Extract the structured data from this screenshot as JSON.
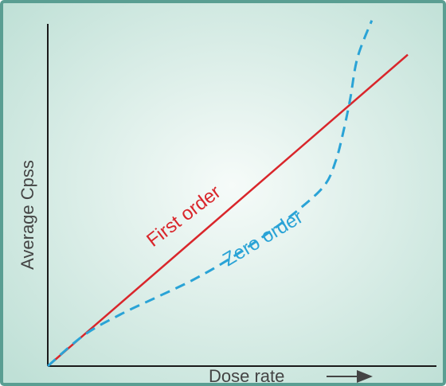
{
  "chart_data": {
    "type": "line",
    "title": "",
    "xlabel": "Dose rate",
    "ylabel": "Average Cpss",
    "xlim": [
      0,
      10
    ],
    "ylim": [
      0,
      10
    ],
    "grid": false,
    "legend": "inline",
    "series": [
      {
        "name": "First order",
        "color": "#d9262b",
        "style": "solid",
        "x": [
          0,
          10
        ],
        "y": [
          0,
          9.1
        ]
      },
      {
        "name": "Zero order",
        "color": "#2aa3d6",
        "style": "dashed",
        "x": [
          0,
          1,
          2,
          3,
          4,
          5,
          6,
          7,
          7.7,
          8,
          8.2,
          8.4,
          8.6,
          9.0
        ],
        "y": [
          0,
          0.9,
          1.5,
          2.0,
          2.5,
          3.1,
          3.8,
          4.6,
          5.3,
          6.0,
          6.8,
          7.8,
          9.0,
          10.1
        ]
      }
    ],
    "colors": {
      "frame": "#5a9e92",
      "axis": "#1a1a1a",
      "bg_center": "#f6fbf9",
      "bg_edge": "#bfe0d6"
    }
  }
}
